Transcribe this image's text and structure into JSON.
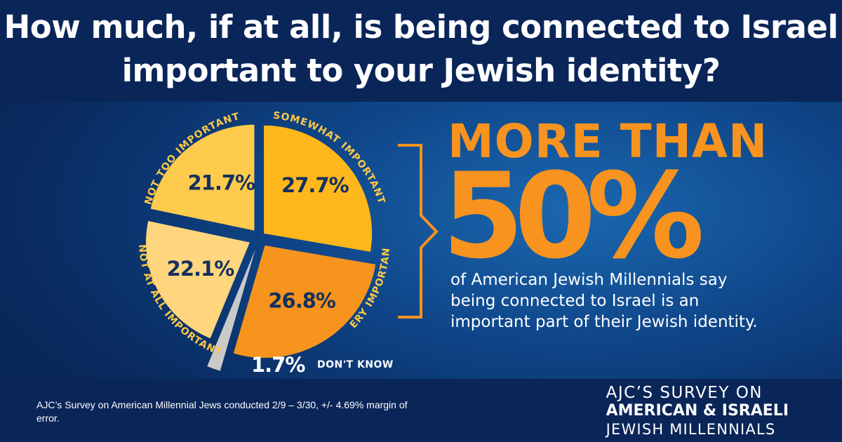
{
  "title": "How much, if at all, is being connected to Israel important to your Jewish identity?",
  "chart_data": {
    "type": "pie",
    "slices": [
      {
        "label": "SOMEWHAT IMPORTANT",
        "value": 27.7,
        "display": "27.7%",
        "color": "#ffb81c"
      },
      {
        "label": "VERY IMPORTANT",
        "value": 26.8,
        "display": "26.8%",
        "color": "#f7941d"
      },
      {
        "label": "DON'T KNOW",
        "value": 1.7,
        "display": "1.7%",
        "color": "#c9c9c9"
      },
      {
        "label": "NOT AT ALL IMPORTANT",
        "value": 22.1,
        "display": "22.1%",
        "color": "#ffd67e"
      },
      {
        "label": "NOT TOO IMPORTANT",
        "value": 21.7,
        "display": "21.7%",
        "color": "#ffcb4d"
      }
    ],
    "label_color": "#ffc846",
    "value_color": "#14305e"
  },
  "callout": {
    "headline": "MORE THAN",
    "big_number": "50%",
    "description": "of American Jewish Millennials say being connected to Israel is an important part of their Jewish identity.",
    "accent_color": "#f7931e"
  },
  "footnote": "AJC’s Survey on American Millennial Jews conducted 2/9 – 3/30, +/- 4.69% margin of error.",
  "brand": {
    "line1": "AJC’S SURVEY ON",
    "line2": "AMERICAN & ISRAELI",
    "line3": "JEWISH MILLENNIALS"
  }
}
